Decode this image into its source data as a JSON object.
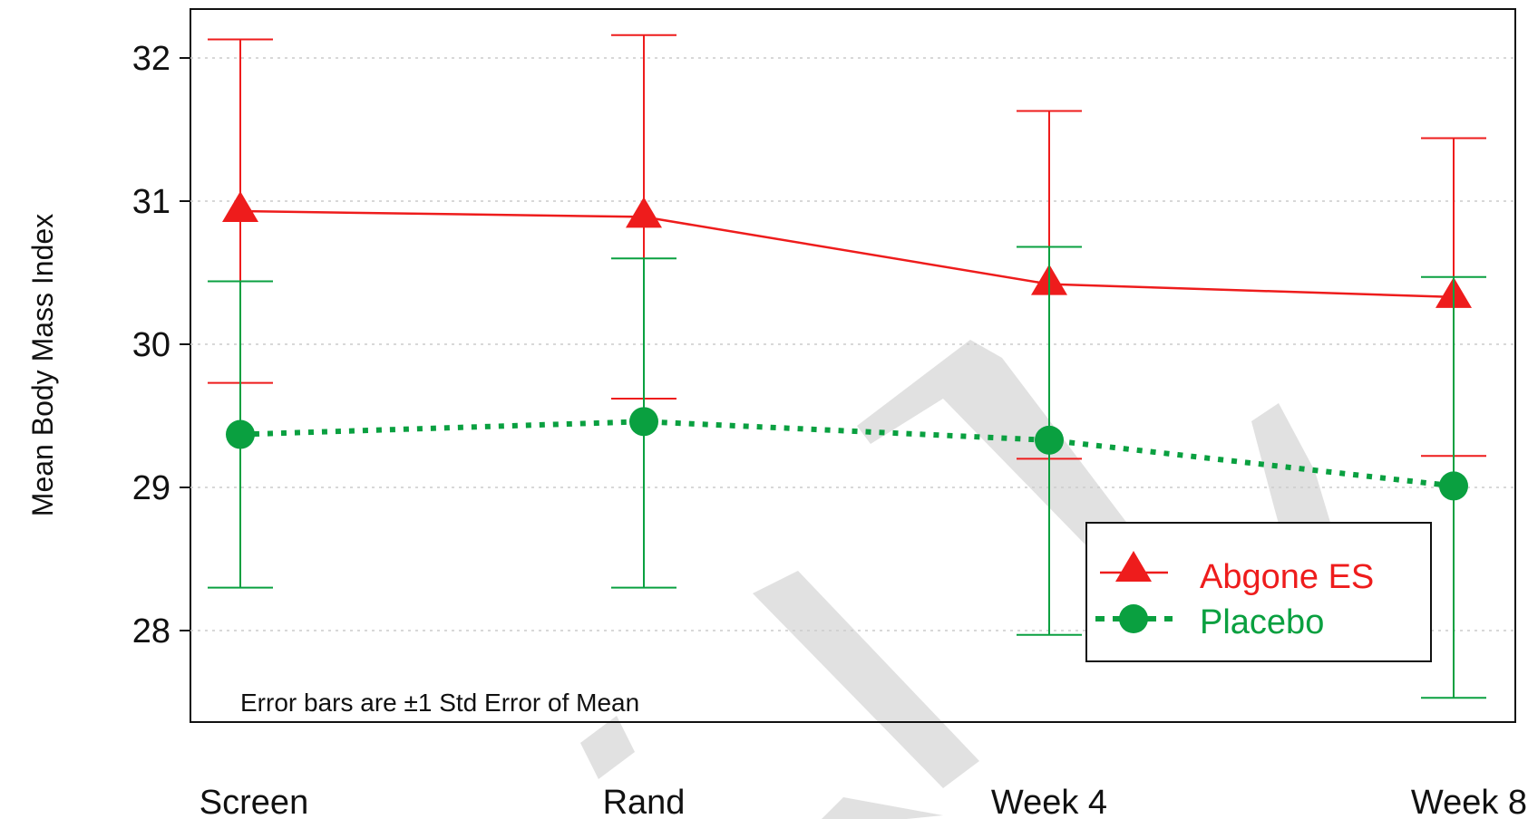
{
  "colors": {
    "series_a": "#ee1c1c",
    "series_b": "#0aa040",
    "grid": "#cccccc",
    "watermark": "#c9c9c9"
  },
  "chart_data": {
    "type": "line",
    "categories": [
      "Screen",
      "Rand",
      "Week 4",
      "Week 8"
    ],
    "ylabel": "Mean Body Mass Index",
    "ylim": [
      27.4,
      32.35
    ],
    "yticks": [
      28,
      29,
      30,
      31,
      32
    ],
    "grid": "horizontal dotted",
    "legend_position": "bottom-right",
    "annotation": "Error bars are ±1 Std Error of Mean",
    "series": [
      {
        "name": "Abgone ES",
        "marker": "triangle",
        "line": "solid",
        "values": [
          30.93,
          30.89,
          30.42,
          30.33
        ],
        "error_low": [
          29.73,
          29.62,
          29.2,
          29.22
        ],
        "error_high": [
          32.13,
          32.16,
          31.63,
          31.44
        ]
      },
      {
        "name": "Placebo",
        "marker": "circle",
        "line": "dotted",
        "values": [
          29.37,
          29.46,
          29.33,
          29.01
        ],
        "error_low": [
          28.3,
          28.3,
          27.97,
          27.53
        ],
        "error_high": [
          30.44,
          30.6,
          30.68,
          30.47
        ]
      }
    ]
  }
}
